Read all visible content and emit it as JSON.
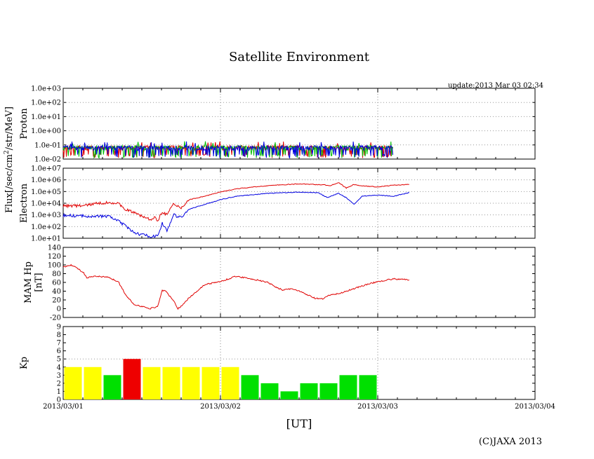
{
  "title": "Satellite Environment",
  "update": "update:2013 Mar 03 02:34",
  "copyright": "(C)JAXA 2013",
  "xlabel": "[UT]",
  "flux_label_main": "Flux[/sec/cm",
  "flux_label_sup": "2",
  "flux_label_tail": "/str/MeV]",
  "colors": {
    "red": "#e00000",
    "blue": "#0000e0",
    "green": "#00c000",
    "kp_yellow": "#ffff00",
    "kp_green": "#00e000",
    "kp_red": "#ee0000"
  },
  "chart_data": [
    {
      "type": "line",
      "name": "proton",
      "ylabel": "Proton",
      "yscale": "log",
      "ylim": [
        0.01,
        1000
      ],
      "yticks": [
        "1.0e-02",
        "1.0e-01",
        "1.0e+00",
        "1.0e+01",
        "1.0e+02",
        "1.0e+03"
      ],
      "xlim": [
        0,
        3
      ],
      "data_end_day": 2.1,
      "series": [
        {
          "name": "proton-red",
          "color": "red",
          "points": [
            [
              0,
              0.06
            ],
            [
              0.5,
              0.06
            ],
            [
              1.0,
              0.06
            ],
            [
              1.5,
              0.06
            ],
            [
              2.1,
              0.06
            ]
          ]
        },
        {
          "name": "proton-green",
          "color": "green",
          "points": [
            [
              0,
              0.06
            ],
            [
              0.5,
              0.07
            ],
            [
              1.0,
              0.06
            ],
            [
              1.5,
              0.07
            ],
            [
              2.1,
              0.06
            ]
          ]
        },
        {
          "name": "proton-blue",
          "color": "blue",
          "points": [
            [
              0,
              0.06
            ],
            [
              0.5,
              0.06
            ],
            [
              1.0,
              0.06
            ],
            [
              1.5,
              0.06
            ],
            [
              2.1,
              0.06
            ]
          ]
        }
      ]
    },
    {
      "type": "line",
      "name": "electron",
      "ylabel": "Electron",
      "yscale": "log",
      "ylim": [
        10,
        10000000
      ],
      "yticks": [
        "1.0e+01",
        "1.0e+02",
        "1.0e+03",
        "1.0e+04",
        "1.0e+05",
        "1.0e+06",
        "1.0e+07"
      ],
      "xlim": [
        0,
        3
      ],
      "series": [
        {
          "name": "electron-red",
          "color": "red",
          "points": [
            [
              0,
              6000
            ],
            [
              0.12,
              6000
            ],
            [
              0.2,
              9000
            ],
            [
              0.3,
              12000
            ],
            [
              0.35,
              9000
            ],
            [
              0.4,
              3000
            ],
            [
              0.45,
              1500
            ],
            [
              0.5,
              800
            ],
            [
              0.55,
              400
            ],
            [
              0.58,
              600
            ],
            [
              0.6,
              300
            ],
            [
              0.63,
              2000
            ],
            [
              0.66,
              1000
            ],
            [
              0.7,
              8000
            ],
            [
              0.75,
              4000
            ],
            [
              0.8,
              20000
            ],
            [
              0.9,
              40000
            ],
            [
              1.0,
              90000
            ],
            [
              1.1,
              170000
            ],
            [
              1.3,
              320000
            ],
            [
              1.5,
              450000
            ],
            [
              1.65,
              380000
            ],
            [
              1.7,
              320000
            ],
            [
              1.75,
              600000
            ],
            [
              1.8,
              200000
            ],
            [
              1.85,
              400000
            ],
            [
              1.9,
              300000
            ],
            [
              2.0,
              250000
            ],
            [
              2.1,
              350000
            ],
            [
              2.2,
              400000
            ]
          ]
        },
        {
          "name": "electron-blue",
          "color": "blue",
          "points": [
            [
              0,
              900
            ],
            [
              0.12,
              800
            ],
            [
              0.2,
              800
            ],
            [
              0.3,
              700
            ],
            [
              0.35,
              300
            ],
            [
              0.4,
              100
            ],
            [
              0.45,
              30
            ],
            [
              0.5,
              20
            ],
            [
              0.55,
              15
            ],
            [
              0.6,
              15
            ],
            [
              0.63,
              200
            ],
            [
              0.66,
              40
            ],
            [
              0.7,
              1000
            ],
            [
              0.75,
              600
            ],
            [
              0.8,
              3000
            ],
            [
              0.9,
              8000
            ],
            [
              1.0,
              20000
            ],
            [
              1.1,
              40000
            ],
            [
              1.3,
              70000
            ],
            [
              1.5,
              90000
            ],
            [
              1.62,
              80000
            ],
            [
              1.68,
              30000
            ],
            [
              1.75,
              70000
            ],
            [
              1.8,
              30000
            ],
            [
              1.85,
              8000
            ],
            [
              1.9,
              40000
            ],
            [
              2.0,
              50000
            ],
            [
              2.1,
              40000
            ],
            [
              2.2,
              80000
            ]
          ]
        }
      ]
    },
    {
      "type": "line",
      "name": "mam-hp",
      "ylabel": "MAM Hp",
      "ylabel2": "[nT]",
      "ylim": [
        -20,
        140
      ],
      "yticks": [
        "-20",
        "0",
        "20",
        "40",
        "60",
        "80",
        "100",
        "120",
        "140"
      ],
      "xlim": [
        0,
        3
      ],
      "series": [
        {
          "name": "hp-red",
          "color": "red",
          "points": [
            [
              0,
              95
            ],
            [
              0.05,
              100
            ],
            [
              0.1,
              90
            ],
            [
              0.13,
              82
            ],
            [
              0.15,
              70
            ],
            [
              0.2,
              74
            ],
            [
              0.28,
              72
            ],
            [
              0.35,
              62
            ],
            [
              0.4,
              30
            ],
            [
              0.45,
              10
            ],
            [
              0.5,
              5
            ],
            [
              0.55,
              0
            ],
            [
              0.6,
              5
            ],
            [
              0.63,
              42
            ],
            [
              0.65,
              40
            ],
            [
              0.7,
              20
            ],
            [
              0.73,
              0
            ],
            [
              0.75,
              5
            ],
            [
              0.8,
              25
            ],
            [
              0.9,
              55
            ],
            [
              1.0,
              62
            ],
            [
              1.1,
              74
            ],
            [
              1.2,
              68
            ],
            [
              1.3,
              60
            ],
            [
              1.35,
              50
            ],
            [
              1.4,
              42
            ],
            [
              1.45,
              46
            ],
            [
              1.5,
              40
            ],
            [
              1.55,
              32
            ],
            [
              1.6,
              24
            ],
            [
              1.65,
              22
            ],
            [
              1.7,
              32
            ],
            [
              1.75,
              34
            ],
            [
              1.8,
              40
            ],
            [
              1.9,
              52
            ],
            [
              2.0,
              62
            ],
            [
              2.1,
              68
            ],
            [
              2.2,
              66
            ]
          ]
        }
      ]
    },
    {
      "type": "bar",
      "name": "kp",
      "ylabel": "Kp",
      "ylim": [
        0,
        9
      ],
      "yticks": [
        "0",
        "1",
        "2",
        "3",
        "4",
        "5",
        "6",
        "7",
        "8",
        "9"
      ],
      "xlim": [
        0,
        3
      ],
      "xticks": [
        "2013/03/01",
        "2013/03/02",
        "2013/03/03",
        "2013/03/04"
      ],
      "bar_width_days": 0.125,
      "values": [
        4,
        4,
        3,
        5,
        4,
        4,
        4,
        4,
        4,
        3,
        2,
        1,
        2,
        2,
        3,
        3
      ]
    }
  ]
}
